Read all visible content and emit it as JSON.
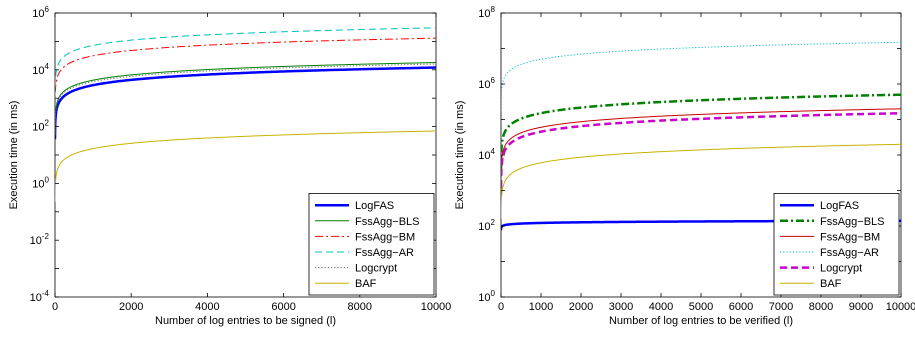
{
  "chart_data": [
    {
      "type": "line",
      "title": "",
      "xlabel": "Number of log entries to be signed (l)",
      "ylabel": "Execution time (in ms)",
      "xlim": [
        0,
        10000
      ],
      "ylim": [
        0.0001,
        1000000
      ],
      "yscale": "log",
      "grid": false,
      "legend_position": "bottom-right",
      "x_ticks": [
        "0",
        "2000",
        "4000",
        "6000",
        "8000",
        "10000"
      ],
      "y_ticks": [
        {
          "base": "10",
          "exp": "-4"
        },
        {
          "base": "10",
          "exp": "-2"
        },
        {
          "base": "10",
          "exp": "0"
        },
        {
          "base": "10",
          "exp": "2"
        },
        {
          "base": "10",
          "exp": "4"
        },
        {
          "base": "10",
          "exp": "6"
        }
      ],
      "series": [
        {
          "name": "LogFAS",
          "color": "#0000ff",
          "style": "solid-thick",
          "y_at_10000": 12000
        },
        {
          "name": "FssAgg−BLS",
          "color": "#008000",
          "style": "solid",
          "y_at_10000": 18000
        },
        {
          "name": "FssAgg−BM",
          "color": "#ff0000",
          "style": "dashdot",
          "y_at_10000": 130000
        },
        {
          "name": "FssAgg−AR",
          "color": "#00bfbf",
          "style": "dashed",
          "y_at_10000": 300000
        },
        {
          "name": "Logcrypt",
          "color": "#666666",
          "style": "dotted",
          "y_at_10000": 16000
        },
        {
          "name": "BAF",
          "color": "#c8b400",
          "style": "solid",
          "y_at_10000": 70
        }
      ]
    },
    {
      "type": "line",
      "title": "",
      "xlabel": "Number of log entries to be verified (l)",
      "ylabel": "Execution time (in ms)",
      "xlim": [
        0,
        10000
      ],
      "ylim": [
        1,
        100000000
      ],
      "yscale": "log",
      "grid": false,
      "legend_position": "bottom-right",
      "x_ticks": [
        "0",
        "1000",
        "2000",
        "3000",
        "4000",
        "5000",
        "6000",
        "7000",
        "8000",
        "9000",
        "10000"
      ],
      "y_ticks": [
        {
          "base": "10",
          "exp": "0"
        },
        {
          "base": "10",
          "exp": "2"
        },
        {
          "base": "10",
          "exp": "4"
        },
        {
          "base": "10",
          "exp": "6"
        },
        {
          "base": "10",
          "exp": "8"
        }
      ],
      "series": [
        {
          "name": "LogFAS",
          "color": "#0000ff",
          "style": "solid-thick",
          "y_at_10000": 140
        },
        {
          "name": "FssAgg−BLS",
          "color": "#008000",
          "style": "dashdot-thick",
          "y_at_10000": 500000
        },
        {
          "name": "FssAgg−BM",
          "color": "#cc0000",
          "style": "solid",
          "y_at_10000": 200000
        },
        {
          "name": "FssAgg−AR",
          "color": "#00bfbf",
          "style": "dotted",
          "y_at_10000": 15000000
        },
        {
          "name": "Logcrypt",
          "color": "#cc00cc",
          "style": "dashed-thick",
          "y_at_10000": 150000
        },
        {
          "name": "BAF",
          "color": "#c8b400",
          "style": "solid",
          "y_at_10000": 20000
        }
      ]
    }
  ]
}
